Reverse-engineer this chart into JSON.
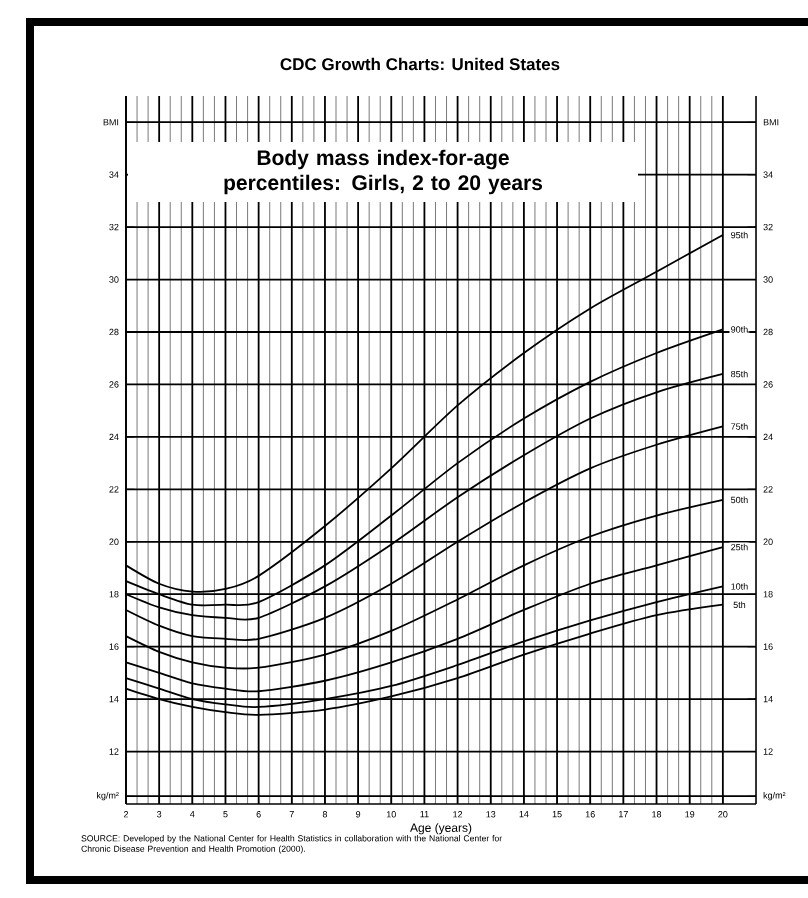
{
  "chart_data": {
    "type": "line",
    "title": "CDC Growth Charts: United States",
    "subtitle": "Body mass index-for-age percentiles: Girls, 2 to 20 years",
    "xlabel": "Age (years)",
    "annotations": [
      "SOURCE: Developed by the National Center for Health Statistics in collaboration with the National Center for Chronic Disease Prevention and Health Promotion (2000)."
    ],
    "x": [
      2,
      3,
      4,
      5,
      6,
      8,
      10,
      12,
      14,
      16,
      18,
      20
    ],
    "series": [
      {
        "name": "5th",
        "color": "#000000",
        "values": [
          14.4,
          14.0,
          13.7,
          13.5,
          13.4,
          13.6,
          14.1,
          14.8,
          15.7,
          16.5,
          17.2,
          17.6
        ]
      },
      {
        "name": "10th",
        "color": "#000000",
        "values": [
          14.8,
          14.4,
          14.0,
          13.8,
          13.7,
          14.0,
          14.5,
          15.3,
          16.2,
          17.0,
          17.7,
          18.3
        ]
      },
      {
        "name": "25th",
        "color": "#000000",
        "values": [
          15.4,
          15.0,
          14.6,
          14.4,
          14.3,
          14.7,
          15.4,
          16.3,
          17.4,
          18.4,
          19.1,
          19.8
        ]
      },
      {
        "name": "50th",
        "color": "#000000",
        "values": [
          16.4,
          15.8,
          15.4,
          15.2,
          15.2,
          15.7,
          16.6,
          17.8,
          19.1,
          20.2,
          21.0,
          21.6
        ]
      },
      {
        "name": "75th",
        "color": "#000000",
        "values": [
          17.4,
          16.8,
          16.4,
          16.3,
          16.3,
          17.1,
          18.4,
          20.0,
          21.5,
          22.8,
          23.7,
          24.4
        ]
      },
      {
        "name": "85th",
        "color": "#000000",
        "values": [
          18.0,
          17.5,
          17.2,
          17.1,
          17.1,
          18.3,
          19.9,
          21.7,
          23.3,
          24.7,
          25.7,
          26.4
        ]
      },
      {
        "name": "90th",
        "color": "#000000",
        "values": [
          18.5,
          18.0,
          17.6,
          17.6,
          17.7,
          19.1,
          21.0,
          23.0,
          24.7,
          26.1,
          27.2,
          28.1
        ]
      },
      {
        "name": "95th",
        "color": "#000000",
        "values": [
          19.1,
          18.4,
          18.1,
          18.2,
          18.7,
          20.6,
          22.8,
          25.2,
          27.2,
          28.9,
          30.3,
          31.7
        ]
      }
    ],
    "xlim": [
      2,
      21
    ],
    "xticks": [
      2,
      3,
      4,
      5,
      6,
      7,
      8,
      9,
      10,
      11,
      12,
      13,
      14,
      15,
      16,
      17,
      18,
      19,
      20
    ],
    "ylim": [
      10,
      37
    ],
    "yticks": [
      {
        "value": 36,
        "label": "BMI"
      },
      34,
      32,
      30,
      28,
      26,
      24,
      22,
      20,
      18,
      16,
      14,
      12,
      {
        "value": 10.3,
        "label": "kg/m²"
      }
    ],
    "y2lim": [
      10,
      37
    ],
    "y2ticks": [
      {
        "value": 36,
        "label": "BMI"
      },
      34,
      32,
      30,
      28,
      26,
      24,
      22,
      20,
      18,
      16,
      14,
      12,
      {
        "value": 10.3,
        "label": "kg/m²"
      }
    ],
    "grid": true
  }
}
